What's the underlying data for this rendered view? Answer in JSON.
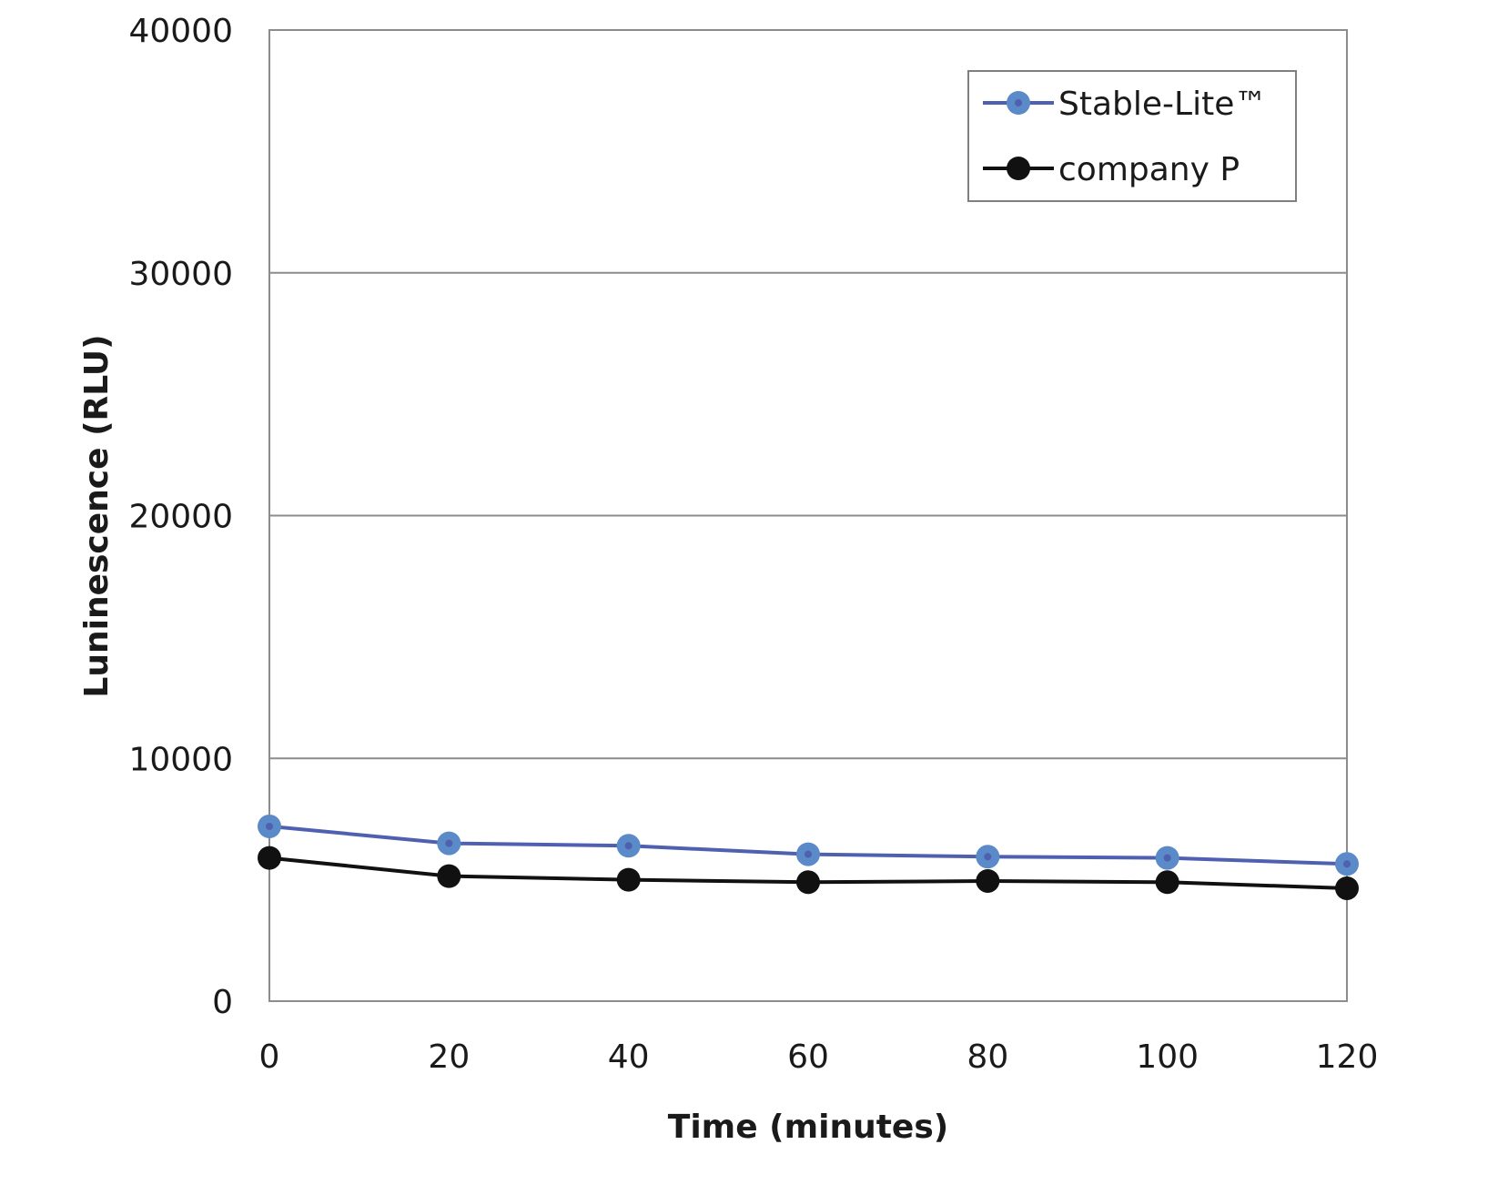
{
  "chart_data": {
    "type": "line",
    "xlabel": "Time (minutes)",
    "ylabel": "Luninescence (RLU)",
    "x": [
      0,
      20,
      40,
      60,
      80,
      100,
      120
    ],
    "xlim": [
      0,
      120
    ],
    "xticks": [
      "0",
      "20",
      "40",
      "60",
      "80",
      "100",
      "120"
    ],
    "ylim": [
      0,
      40000
    ],
    "yticks": [
      "0",
      "10000",
      "20000",
      "30000",
      "40000"
    ],
    "grid": "horizontal",
    "legend_position": "top-right",
    "series": [
      {
        "name": "Stable-Lite™",
        "color": "#5060b0",
        "marker_color": "#5b8ac8",
        "values": [
          7200,
          6500,
          6400,
          6050,
          5950,
          5900,
          5650
        ]
      },
      {
        "name": "company P",
        "color": "#111111",
        "marker_color": "#111111",
        "values": [
          5900,
          5150,
          5000,
          4900,
          4950,
          4900,
          4650
        ]
      }
    ]
  }
}
